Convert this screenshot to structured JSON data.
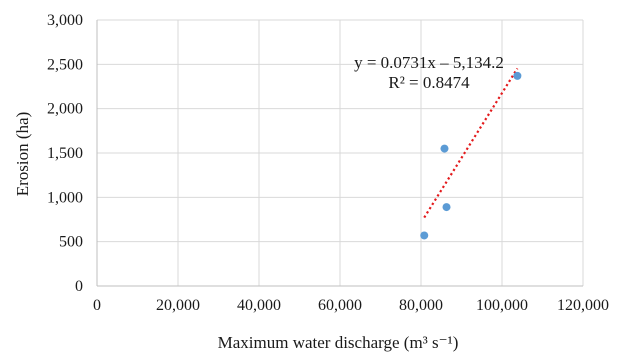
{
  "chart_data": {
    "type": "scatter",
    "xlabel": "Maximum water discharge (m³ s⁻¹)",
    "ylabel": "Erosion (ha)",
    "xlim": [
      0,
      120000
    ],
    "ylim": [
      0,
      3000
    ],
    "x_ticks": [
      0,
      20000,
      40000,
      60000,
      80000,
      100000,
      120000
    ],
    "x_tick_labels": [
      "0",
      "20,000",
      "40,000",
      "60,000",
      "80,000",
      "100,000",
      "120,000"
    ],
    "y_ticks": [
      0,
      500,
      1000,
      1500,
      2000,
      2500,
      3000
    ],
    "y_tick_labels": [
      "0",
      "500",
      "1,000",
      "1,500",
      "2,000",
      "2,500",
      "3,000"
    ],
    "grid": true,
    "series": [
      {
        "points": [
          {
            "x": 80800,
            "y": 570
          },
          {
            "x": 85800,
            "y": 1550
          },
          {
            "x": 86300,
            "y": 890
          },
          {
            "x": 103800,
            "y": 2370
          }
        ],
        "color": "#5b9bd5"
      }
    ],
    "trendline": {
      "type": "linear",
      "slope": 0.0731,
      "intercept": -5134.2,
      "x_range": [
        80800,
        103800
      ],
      "color": "#e31a1c",
      "style": "dotted",
      "equation": "y = 0.0731x – 5,134.2",
      "r_squared": "R² = 0.8474"
    }
  }
}
